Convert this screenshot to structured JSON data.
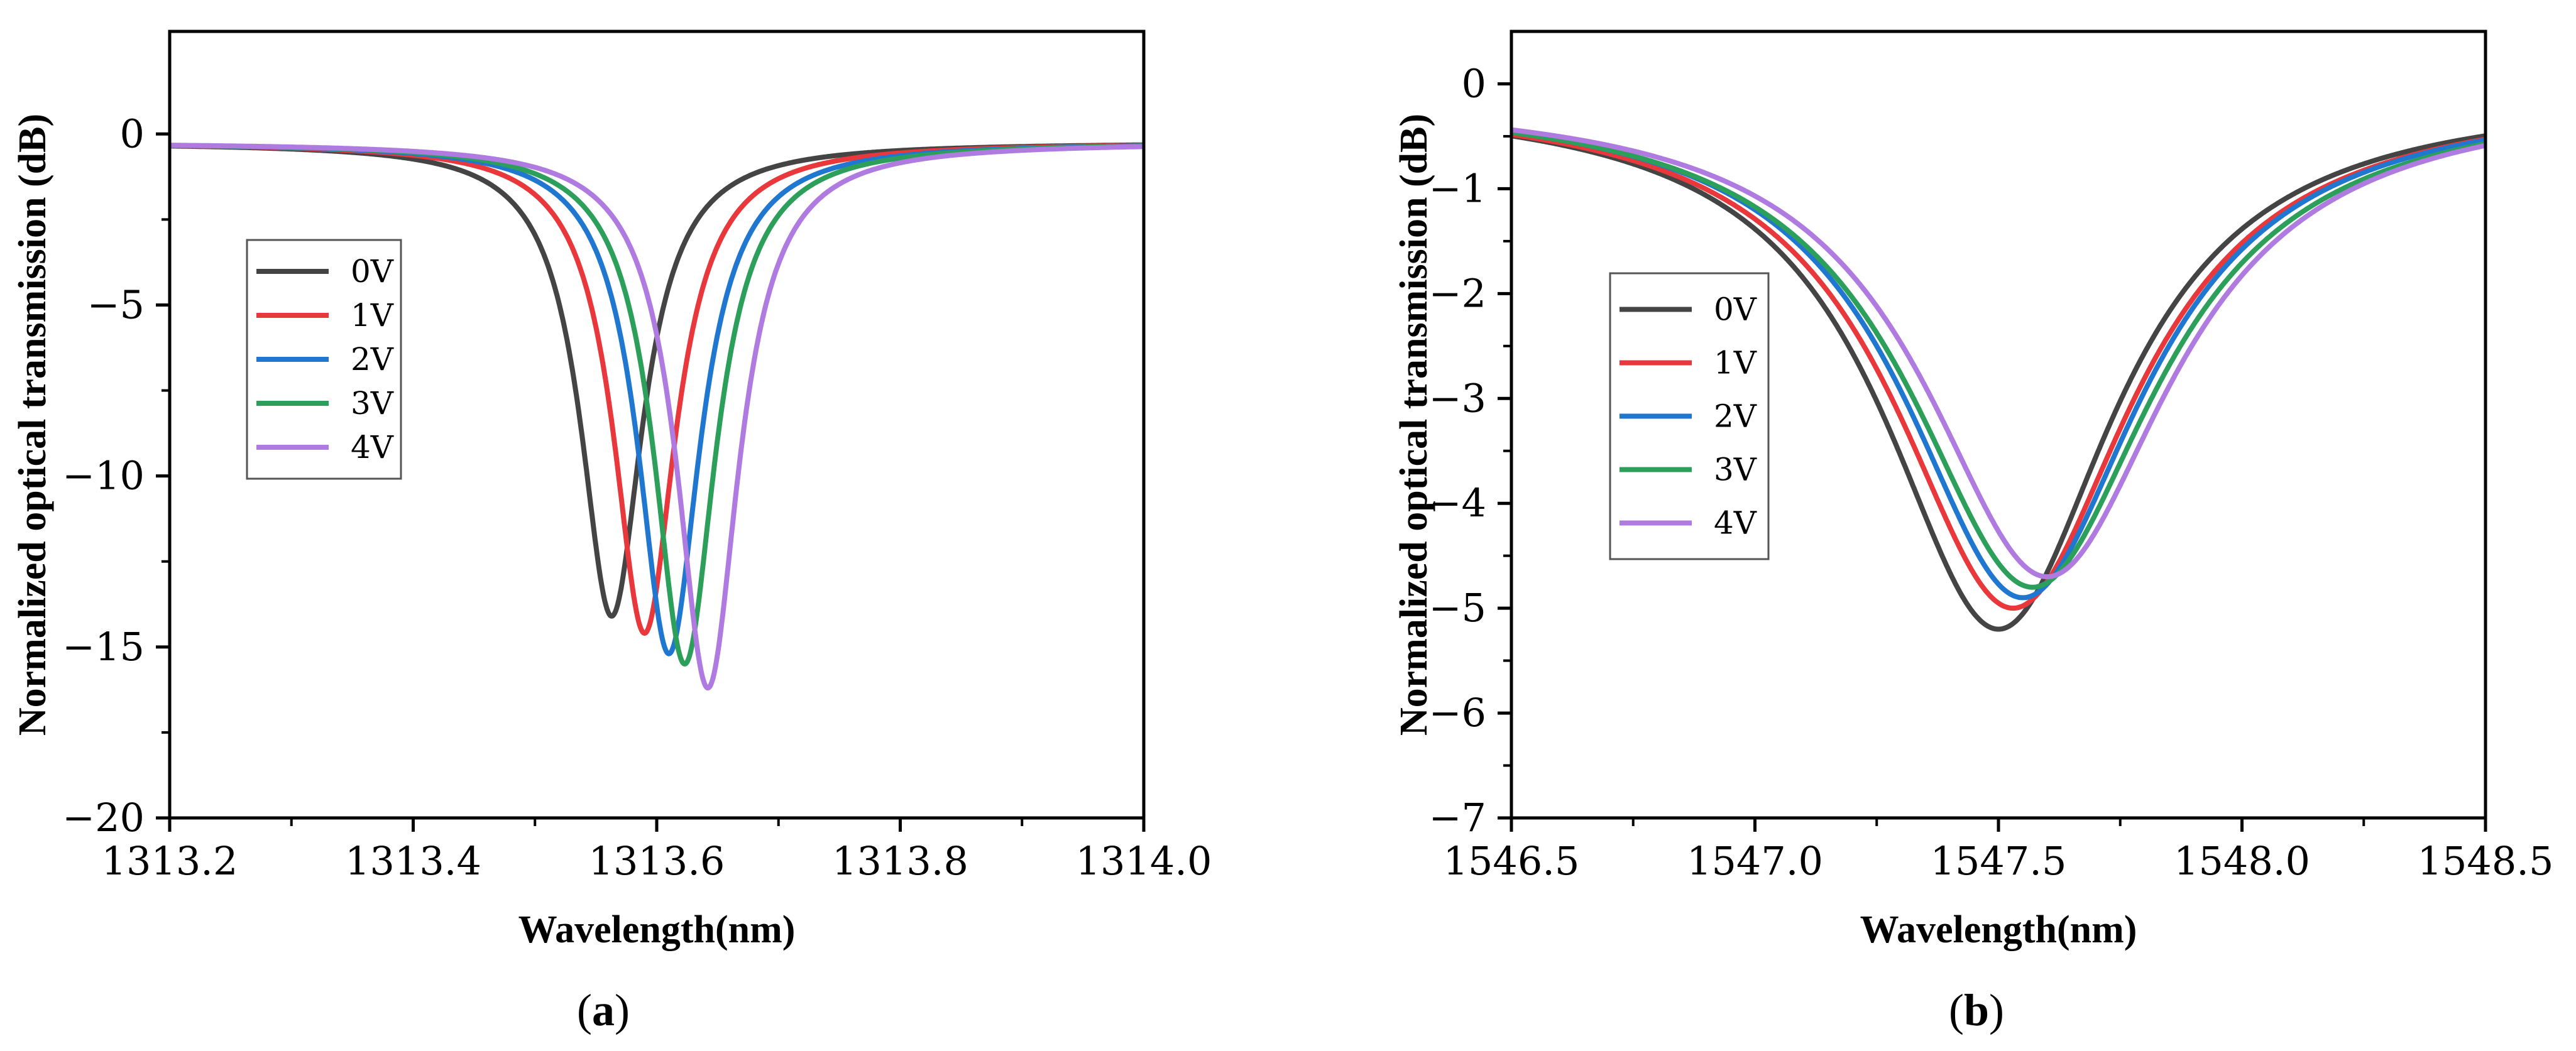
{
  "chart_data": [
    {
      "type": "line",
      "panel": "a",
      "caption": {
        "open": "(",
        "letter": "a",
        "close": ")"
      },
      "xlabel": "Wavelength(nm)",
      "ylabel": "Normalized optical transmission (dB)",
      "xlim": [
        1313.2,
        1314.0
      ],
      "ylim": [
        -20,
        3
      ],
      "xticks": [
        1313.2,
        1313.4,
        1313.6,
        1313.8,
        1314.0
      ],
      "xtick_labels": [
        "1313.2",
        "1313.4",
        "1313.6",
        "1313.8",
        "1314.0"
      ],
      "yticks": [
        0,
        -5,
        -10,
        -15,
        -20
      ],
      "ytick_labels": [
        "0",
        "−5",
        "−10",
        "−15",
        "−20"
      ],
      "legend_position": "middle-left",
      "series": [
        {
          "name": "0V",
          "color": "#444444",
          "center": 1313.563,
          "depth": -14.1,
          "hwhm": 0.031,
          "baseline": -0.25
        },
        {
          "name": "1V",
          "color": "#e8383b",
          "center": 1313.59,
          "depth": -14.6,
          "hwhm": 0.031,
          "baseline": -0.25
        },
        {
          "name": "2V",
          "color": "#1f77d0",
          "center": 1313.61,
          "depth": -15.2,
          "hwhm": 0.031,
          "baseline": -0.25
        },
        {
          "name": "3V",
          "color": "#2ca05a",
          "center": 1313.623,
          "depth": -15.5,
          "hwhm": 0.031,
          "baseline": -0.25
        },
        {
          "name": "4V",
          "color": "#b07be0",
          "center": 1313.642,
          "depth": -16.2,
          "hwhm": 0.031,
          "baseline": -0.25
        }
      ]
    },
    {
      "type": "line",
      "panel": "b",
      "caption": {
        "open": "(",
        "letter": "b",
        "close": ")"
      },
      "xlabel": "Wavelength(nm)",
      "ylabel": "Normalized optical transmission (dB)",
      "xlim": [
        1546.5,
        1548.5
      ],
      "ylim": [
        -7,
        0.5
      ],
      "xticks": [
        1546.5,
        1547.0,
        1547.5,
        1548.0,
        1548.5
      ],
      "xtick_labels": [
        "1546.5",
        "1547.0",
        "1547.5",
        "1548.0",
        "1548.5"
      ],
      "yticks": [
        0,
        -1,
        -2,
        -3,
        -4,
        -5,
        -6,
        -7
      ],
      "ytick_labels": [
        "0",
        "−1",
        "−2",
        "−3",
        "−4",
        "−5",
        "−6",
        "−7"
      ],
      "legend_position": "middle-left",
      "series": [
        {
          "name": "0V",
          "color": "#444444",
          "center": 1547.5,
          "depth": -5.2,
          "hwhm": 0.29,
          "baseline": -0.1
        },
        {
          "name": "1V",
          "color": "#e8383b",
          "center": 1547.53,
          "depth": -5.0,
          "hwhm": 0.3,
          "baseline": -0.1
        },
        {
          "name": "2V",
          "color": "#1f77d0",
          "center": 1547.55,
          "depth": -4.9,
          "hwhm": 0.3,
          "baseline": -0.1
        },
        {
          "name": "3V",
          "color": "#2ca05a",
          "center": 1547.57,
          "depth": -4.8,
          "hwhm": 0.31,
          "baseline": -0.1
        },
        {
          "name": "4V",
          "color": "#b07be0",
          "center": 1547.6,
          "depth": -4.7,
          "hwhm": 0.31,
          "baseline": -0.1
        }
      ]
    }
  ]
}
